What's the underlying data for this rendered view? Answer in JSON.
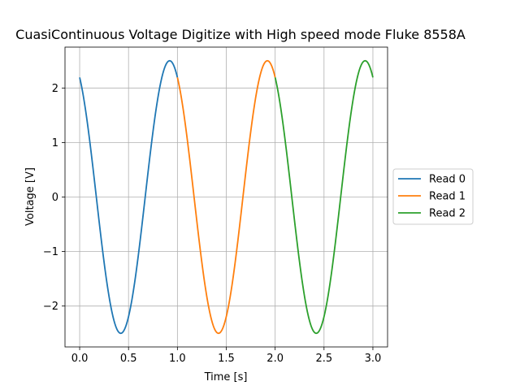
{
  "chart_data": {
    "type": "line",
    "title": "CuasiContinuous Voltage Digitize with High speed mode Fluke 8558A",
    "xlabel": "Time [s]",
    "ylabel": "Voltage [V]",
    "xlim": [
      -0.15,
      3.15
    ],
    "ylim": [
      -2.75,
      2.75
    ],
    "x_ticks": [
      0.0,
      0.5,
      1.0,
      1.5,
      2.0,
      2.5,
      3.0
    ],
    "x_tick_labels": [
      "0.0",
      "0.5",
      "1.0",
      "1.5",
      "2.0",
      "2.5",
      "3.0"
    ],
    "y_ticks": [
      -2,
      -1,
      0,
      1,
      2
    ],
    "y_tick_labels": [
      "−2",
      "−1",
      "0",
      "1",
      "2"
    ],
    "grid": true,
    "legend_position": "outside-right",
    "waveform": {
      "amplitude": 2.5,
      "frequency_hz": 1.0,
      "phase_rad": 2.0708
    },
    "series": [
      {
        "name": "Read 0",
        "color": "#1f77b4",
        "x_range": [
          0.0,
          1.0
        ]
      },
      {
        "name": "Read 1",
        "color": "#ff7f0e",
        "x_range": [
          1.0,
          2.0
        ]
      },
      {
        "name": "Read 2",
        "color": "#2ca02c",
        "x_range": [
          2.0,
          3.0
        ]
      }
    ]
  }
}
